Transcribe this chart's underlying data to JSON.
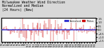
{
  "title_line1": "Milwaukee Weather Wind Direction",
  "title_line2": "Normalized and Median",
  "title_line3": "(24 Hours) (New)",
  "background_color": "#d8d8d8",
  "plot_bg_color": "#ffffff",
  "bar_color": "#cc0000",
  "median_color": "#2222cc",
  "median_value": 0.0,
  "ylim": [
    -1.6,
    1.6
  ],
  "yticks": [
    -1.5,
    -1.0,
    -0.5,
    0.0,
    0.5,
    1.0,
    1.5
  ],
  "num_points": 144,
  "legend_labels": [
    "Normalized",
    "Median"
  ],
  "legend_colors": [
    "#2222cc",
    "#cc0000"
  ],
  "title_fontsize": 3.5,
  "tick_fontsize": 2.5
}
